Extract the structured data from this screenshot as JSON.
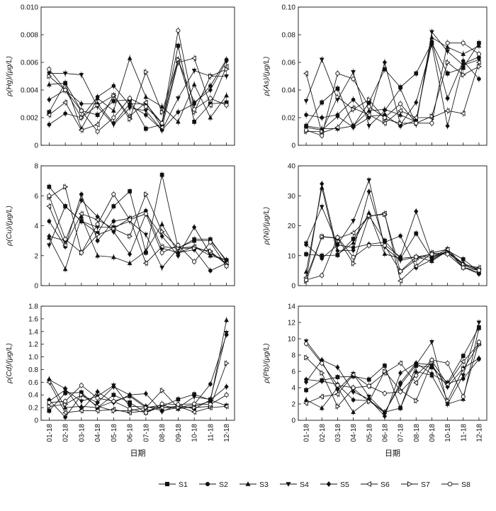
{
  "figure": {
    "xlabel": "日期",
    "x_ticks": [
      "01-18",
      "02-18",
      "03-18",
      "04-18",
      "05-18",
      "06-18",
      "07-18",
      "08-18",
      "09-18",
      "10-18",
      "11-18",
      "12-18"
    ]
  },
  "legend": [
    {
      "name": "S1",
      "marker": "square-filled"
    },
    {
      "name": "S2",
      "marker": "circle-filled"
    },
    {
      "name": "S3",
      "marker": "triangle-up-filled"
    },
    {
      "name": "S4",
      "marker": "triangle-down-filled"
    },
    {
      "name": "S5",
      "marker": "diamond-filled"
    },
    {
      "name": "S6",
      "marker": "triangle-left-open"
    },
    {
      "name": "S7",
      "marker": "triangle-right-open"
    },
    {
      "name": "S8",
      "marker": "circle-open"
    }
  ],
  "chart_data": [
    {
      "type": "line",
      "ylabel": "ρ(Hg)/(μg/L)",
      "ylim": [
        0,
        0.01
      ],
      "yticks": [
        "0",
        "0.002",
        "0.004",
        "0.006",
        "0.008",
        "0.010"
      ],
      "grid": false,
      "x": [
        "01-18",
        "02-18",
        "03-18",
        "04-18",
        "05-18",
        "06-18",
        "07-18",
        "08-18",
        "09-18",
        "10-18",
        "11-18",
        "12-18"
      ],
      "series": [
        {
          "name": "S1",
          "values": [
            0.0024,
            0.0045,
            0.0025,
            0.0022,
            0.0032,
            0.0033,
            0.0012,
            0.0015,
            0.0072,
            0.0017,
            0.003,
            0.0031
          ]
        },
        {
          "name": "S2",
          "values": [
            0.0015,
            0.0023,
            0.002,
            0.0035,
            0.0043,
            0.0029,
            0.0022,
            0.0011,
            0.0024,
            0.003,
            0.0043,
            0.0062
          ]
        },
        {
          "name": "S3",
          "values": [
            0.0044,
            0.0045,
            0.0012,
            0.0034,
            0.0025,
            0.0063,
            0.0035,
            0.0028,
            0.0017,
            0.0044,
            0.002,
            0.0036
          ]
        },
        {
          "name": "S4",
          "values": [
            0.0052,
            0.0052,
            0.0051,
            0.0028,
            0.0015,
            0.0027,
            0.0025,
            0.0011,
            0.0034,
            0.0054,
            0.005,
            0.005
          ]
        },
        {
          "name": "S5",
          "values": [
            0.0033,
            0.004,
            0.003,
            0.003,
            0.0016,
            0.003,
            0.003,
            0.0016,
            0.0062,
            0.0031,
            0.004,
            0.0061
          ]
        },
        {
          "name": "S6",
          "values": [
            0.0022,
            0.0031,
            0.0011,
            0.0015,
            0.0036,
            0.0021,
            0.0031,
            0.0013,
            0.006,
            0.0063,
            0.0029,
            0.0057
          ]
        },
        {
          "name": "S7",
          "values": [
            0.005,
            0.004,
            0.002,
            0.0029,
            0.0036,
            0.0019,
            0.0053,
            0.0024,
            0.0062,
            0.0024,
            0.005,
            0.0055
          ]
        },
        {
          "name": "S8",
          "values": [
            0.0055,
            0.004,
            0.0025,
            0.001,
            0.002,
            0.0034,
            0.0028,
            0.0016,
            0.0083,
            0.0026,
            0.0034,
            0.0029
          ]
        }
      ]
    },
    {
      "type": "line",
      "ylabel": "ρ(As)/(μg/L)",
      "ylim": [
        0,
        0.1
      ],
      "yticks": [
        "0",
        "0.02",
        "0.04",
        "0.06",
        "0.08",
        "0.10"
      ],
      "grid": false,
      "x": [
        "01-18",
        "02-18",
        "03-18",
        "04-18",
        "05-18",
        "06-18",
        "07-18",
        "08-18",
        "09-18",
        "10-18",
        "11-18",
        "12-18"
      ],
      "series": [
        {
          "name": "S1",
          "values": [
            0.014,
            0.031,
            0.041,
            0.014,
            0.031,
            0.055,
            0.042,
            0.052,
            0.074,
            0.052,
            0.056,
            0.074
          ]
        },
        {
          "name": "S2",
          "values": [
            0.022,
            0.02,
            0.022,
            0.033,
            0.021,
            0.022,
            0.014,
            0.018,
            0.075,
            0.034,
            0.061,
            0.048
          ]
        },
        {
          "name": "S3",
          "values": [
            0.014,
            0.012,
            0.012,
            0.014,
            0.025,
            0.026,
            0.022,
            0.017,
            0.078,
            0.071,
            0.066,
            0.072
          ]
        },
        {
          "name": "S4",
          "values": [
            0.032,
            0.062,
            0.033,
            0.053,
            0.014,
            0.025,
            0.041,
            0.015,
            0.082,
            0.068,
            0.058,
            0.062
          ]
        },
        {
          "name": "S5",
          "values": [
            0.013,
            0.011,
            0.021,
            0.013,
            0.02,
            0.06,
            0.015,
            0.031,
            0.073,
            0.014,
            0.059,
            0.064
          ]
        },
        {
          "name": "S6",
          "values": [
            0.052,
            0.009,
            0.013,
            0.027,
            0.022,
            0.016,
            0.025,
            0.02,
            0.02,
            0.025,
            0.023,
            0.06
          ]
        },
        {
          "name": "S7",
          "values": [
            0.01,
            0.01,
            0.035,
            0.026,
            0.033,
            0.019,
            0.016,
            0.016,
            0.021,
            0.06,
            0.051,
            0.057
          ]
        },
        {
          "name": "S8",
          "values": [
            0.011,
            0.007,
            0.052,
            0.048,
            0.028,
            0.02,
            0.03,
            0.016,
            0.016,
            0.074,
            0.074,
            0.066
          ]
        }
      ]
    },
    {
      "type": "line",
      "ylabel": "ρ(Cu)/(μg/L)",
      "ylim": [
        0,
        8
      ],
      "yticks": [
        "0",
        "2",
        "4",
        "6",
        "8"
      ],
      "grid": false,
      "x": [
        "01-18",
        "02-18",
        "03-18",
        "04-18",
        "05-18",
        "06-18",
        "07-18",
        "08-18",
        "09-18",
        "10-18",
        "11-18",
        "12-18"
      ],
      "series": [
        {
          "name": "S1",
          "values": [
            6.6,
            5.3,
            4.3,
            3.5,
            5.3,
            6.3,
            2.2,
            7.4,
            2.5,
            3.0,
            3.0,
            1.7
          ]
        },
        {
          "name": "S2",
          "values": [
            4.3,
            2.6,
            6.1,
            3.0,
            4.3,
            4.5,
            5.0,
            2.5,
            2.2,
            2.4,
            1.0,
            1.5
          ]
        },
        {
          "name": "S3",
          "values": [
            3.2,
            1.1,
            4.6,
            2.0,
            1.9,
            1.5,
            2.3,
            4.1,
            2.2,
            2.6,
            2.0,
            1.7
          ]
        },
        {
          "name": "S4",
          "values": [
            2.7,
            5.3,
            4.3,
            3.9,
            3.9,
            4.3,
            3.4,
            1.2,
            2.5,
            3.1,
            3.1,
            1.6
          ]
        },
        {
          "name": "S5",
          "values": [
            3.3,
            3.0,
            5.7,
            4.6,
            3.6,
            2.1,
            4.8,
            3.3,
            2.0,
            3.9,
            2.1,
            1.7
          ]
        },
        {
          "name": "S6",
          "values": [
            5.3,
            2.7,
            4.8,
            4.4,
            3.8,
            4.5,
            1.5,
            2.6,
            2.5,
            2.6,
            2.2,
            1.5
          ]
        },
        {
          "name": "S7",
          "values": [
            5.9,
            6.6,
            2.2,
            3.4,
            3.8,
            3.3,
            6.1,
            3.6,
            2.5,
            2.5,
            2.3,
            1.4
          ]
        },
        {
          "name": "S8",
          "values": [
            6.0,
            3.1,
            2.2,
            4.1,
            6.1,
            4.4,
            4.8,
            2.2,
            2.7,
            1.6,
            2.9,
            1.3
          ]
        }
      ]
    },
    {
      "type": "line",
      "ylabel": "ρ(Ni)/(μg/L)",
      "ylim": [
        0,
        40
      ],
      "yticks": [
        "0",
        "10",
        "20",
        "30",
        "40"
      ],
      "grid": false,
      "x": [
        "01-18",
        "02-18",
        "03-18",
        "04-18",
        "05-18",
        "06-18",
        "07-18",
        "08-18",
        "09-18",
        "10-18",
        "11-18",
        "12-18"
      ],
      "series": [
        {
          "name": "S1",
          "values": [
            10.5,
            10.0,
            10.2,
            15.6,
            23.4,
            15.0,
            9.0,
            17.4,
            9.0,
            11.7,
            8.8,
            4.7
          ]
        },
        {
          "name": "S2",
          "values": [
            13.7,
            9.1,
            13.6,
            12.7,
            13.8,
            14.5,
            16.6,
            6.0,
            8.6,
            11.6,
            6.2,
            3.9
          ]
        },
        {
          "name": "S3",
          "values": [
            4.6,
            32.7,
            10.4,
            14.3,
            24.3,
            10.6,
            9.1,
            9.6,
            8.2,
            11.6,
            6.0,
            4.4
          ]
        },
        {
          "name": "S4",
          "values": [
            14.1,
            26.3,
            13.8,
            21.6,
            35.2,
            12.8,
            8.4,
            9.6,
            9.5,
            12.2,
            6.7,
            5.2
          ]
        },
        {
          "name": "S5",
          "values": [
            1.9,
            34.0,
            11.6,
            11.8,
            31.4,
            13.6,
            9.6,
            24.8,
            9.5,
            11.4,
            7.4,
            5.4
          ]
        },
        {
          "name": "S6",
          "values": [
            2.7,
            16.3,
            15.8,
            17.6,
            23.1,
            24.1,
            1.6,
            6.5,
            11.0,
            12.1,
            6.9,
            6.0
          ]
        },
        {
          "name": "S7",
          "values": [
            1.5,
            16.4,
            15.9,
            7.4,
            23.3,
            23.8,
            4.6,
            8.7,
            10.8,
            10.9,
            7.1,
            5.5
          ]
        },
        {
          "name": "S8",
          "values": [
            1.9,
            3.4,
            16.1,
            9.5,
            13.4,
            13.4,
            4.8,
            9.6,
            10.5,
            10.5,
            6.0,
            5.1
          ]
        }
      ]
    },
    {
      "type": "line",
      "ylabel": "ρ(Cd)/(μg/L)",
      "ylim": [
        0,
        1.8
      ],
      "yticks": [
        "0",
        "0.2",
        "0.4",
        "0.6",
        "0.8",
        "1.0",
        "1.2",
        "1.4",
        "1.6",
        "1.8"
      ],
      "grid": false,
      "x": [
        "01-18",
        "02-18",
        "03-18",
        "04-18",
        "05-18",
        "06-18",
        "07-18",
        "08-18",
        "09-18",
        "10-18",
        "11-18",
        "12-18"
      ],
      "series": [
        {
          "name": "S1",
          "values": [
            0.15,
            0.43,
            0.44,
            0.2,
            0.4,
            0.28,
            0.12,
            0.22,
            0.33,
            0.41,
            0.32,
            0.23
          ]
        },
        {
          "name": "S2",
          "values": [
            0.32,
            0.05,
            0.4,
            0.28,
            0.53,
            0.4,
            0.22,
            0.15,
            0.2,
            0.25,
            0.57,
            1.35
          ]
        },
        {
          "name": "S3",
          "values": [
            0.65,
            0.2,
            0.22,
            0.2,
            0.3,
            0.38,
            0.2,
            0.24,
            0.18,
            0.22,
            0.3,
            1.58
          ]
        },
        {
          "name": "S4",
          "values": [
            0.3,
            0.48,
            0.3,
            0.38,
            0.55,
            0.22,
            0.21,
            0.2,
            0.2,
            0.37,
            0.33,
            1.38
          ]
        },
        {
          "name": "S5",
          "values": [
            0.64,
            0.5,
            0.16,
            0.45,
            0.28,
            0.4,
            0.42,
            0.14,
            0.24,
            0.18,
            0.32,
            0.53
          ]
        },
        {
          "name": "S6",
          "values": [
            0.6,
            0.12,
            0.15,
            0.15,
            0.17,
            0.12,
            0.15,
            0.2,
            0.22,
            0.13,
            0.2,
            0.22
          ]
        },
        {
          "name": "S7",
          "values": [
            0.22,
            0.25,
            0.4,
            0.22,
            0.15,
            0.15,
            0.2,
            0.47,
            0.2,
            0.2,
            0.22,
            0.9
          ]
        },
        {
          "name": "S8",
          "values": [
            0.28,
            0.3,
            0.55,
            0.35,
            0.3,
            0.18,
            0.12,
            0.26,
            0.25,
            0.26,
            0.25,
            0.4
          ]
        }
      ]
    },
    {
      "type": "line",
      "ylabel": "ρ(Pb)/(μg/L)",
      "ylim": [
        0,
        14
      ],
      "yticks": [
        "0",
        "2",
        "4",
        "6",
        "8",
        "10",
        "12",
        "14"
      ],
      "grid": false,
      "x": [
        "01-18",
        "02-18",
        "03-18",
        "04-18",
        "05-18",
        "06-18",
        "07-18",
        "08-18",
        "09-18",
        "10-18",
        "11-18",
        "12-18"
      ],
      "series": [
        {
          "name": "S1",
          "values": [
            3.7,
            4.9,
            5.3,
            5.4,
            5.0,
            6.7,
            1.5,
            6.7,
            6.5,
            4.6,
            7.9,
            11.4
          ]
        },
        {
          "name": "S2",
          "values": [
            5.0,
            4.8,
            4.4,
            2.5,
            2.4,
            0.9,
            4.6,
            7.0,
            5.7,
            4.5,
            5.1,
            7.5
          ]
        },
        {
          "name": "S3",
          "values": [
            2.5,
            1.5,
            4.0,
            1.0,
            2.5,
            1.0,
            1.5,
            6.0,
            5.5,
            2.0,
            2.6,
            11.3
          ]
        },
        {
          "name": "S4",
          "values": [
            9.7,
            7.2,
            3.7,
            5.7,
            2.9,
            1.0,
            4.3,
            6.8,
            9.6,
            2.0,
            5.5,
            12.0
          ]
        },
        {
          "name": "S5",
          "values": [
            4.7,
            7.4,
            6.5,
            3.5,
            2.6,
            0.5,
            5.8,
            7.0,
            6.8,
            4.1,
            6.4,
            7.6
          ]
        },
        {
          "name": "S6",
          "values": [
            2.1,
            2.9,
            3.2,
            5.6,
            4.2,
            5.8,
            7.0,
            4.6,
            7.3,
            4.4,
            7.2,
            9.4
          ]
        },
        {
          "name": "S7",
          "values": [
            7.7,
            5.8,
            1.7,
            3.9,
            2.3,
            6.0,
            3.7,
            2.4,
            7.1,
            2.4,
            6.3,
            9.3
          ]
        },
        {
          "name": "S8",
          "values": [
            9.4,
            7.0,
            4.3,
            4.0,
            4.2,
            3.3,
            3.5,
            5.5,
            7.4,
            7.0,
            2.9,
            9.6
          ]
        }
      ]
    }
  ]
}
